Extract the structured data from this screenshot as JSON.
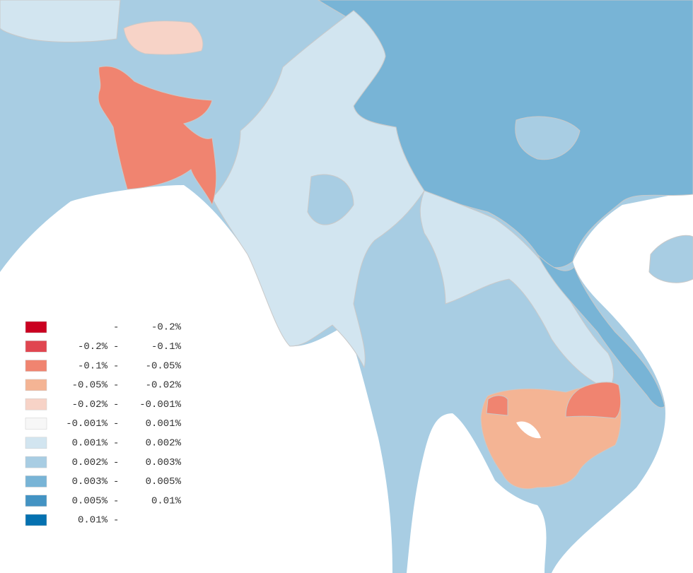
{
  "legend": {
    "separator": "-",
    "entries": [
      {
        "color": "#ca0020",
        "high": "-0.2%"
      },
      {
        "color": "#e04650",
        "low": "-0.2%",
        "high": "-0.1%"
      },
      {
        "color": "#f08470",
        "low": "-0.1%",
        "high": "-0.05%"
      },
      {
        "color": "#f4b494",
        "low": "-0.05%",
        "high": "-0.02%"
      },
      {
        "color": "#f7d3c7",
        "low": "-0.02%",
        "high": "-0.001%"
      },
      {
        "color": "#f7f7f7",
        "low": "-0.001%",
        "high": "0.001%"
      },
      {
        "color": "#d2e5f0",
        "low": "0.001%",
        "high": "0.002%"
      },
      {
        "color": "#a8cde3",
        "low": "0.002%",
        "high": "0.003%"
      },
      {
        "color": "#78b4d6",
        "low": "0.003%",
        "high": "0.005%"
      },
      {
        "color": "#4393c3",
        "low": "0.005%",
        "high": "0.01%"
      },
      {
        "color": "#0571b0",
        "low": "0.01%"
      }
    ]
  }
}
